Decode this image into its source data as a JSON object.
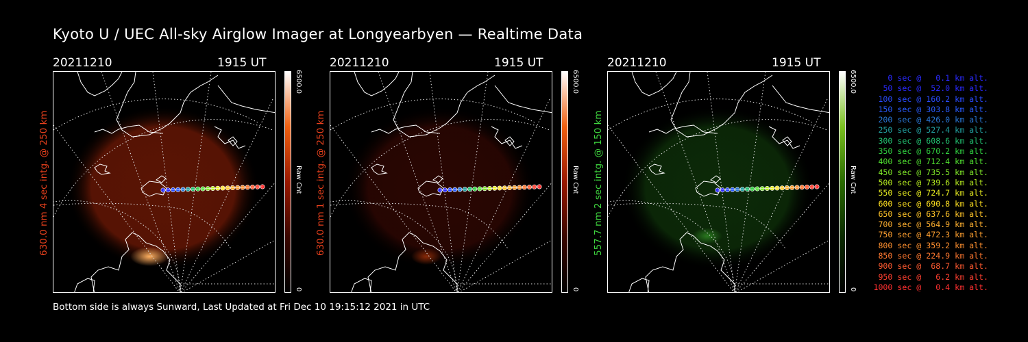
{
  "title": "Kyoto U / UEC All-sky Airglow Imager at Longyearbyen — Realtime Data",
  "panels": [
    {
      "date": "20211210",
      "time": "1915 UT",
      "ylabel": "630.0 nm 4 sec intg. @ 250 km",
      "label_color": "#e8401c",
      "cb_max": "6500.0",
      "cb_min": "0",
      "cb_unit": "Raw Cnt",
      "colormap": "red"
    },
    {
      "date": "20211210",
      "time": "1915 UT",
      "ylabel": "630.0 nm 1 sec intg. @ 250 km",
      "label_color": "#e8401c",
      "cb_max": "6500.0",
      "cb_min": "0",
      "cb_unit": "Raw Cnt",
      "colormap": "red"
    },
    {
      "date": "20211210",
      "time": "1915 UT",
      "ylabel": "557.7 nm 2 sec intg. @ 150 km",
      "label_color": "#3fd63f",
      "cb_max": "6500.0",
      "cb_min": "0",
      "cb_unit": "Raw Cnt",
      "colormap": "green"
    }
  ],
  "legend": [
    {
      "text": "0 sec @   0.1 km alt.",
      "color": "#2a2aff"
    },
    {
      "text": "50 sec @  52.0 km alt.",
      "color": "#2a2aff"
    },
    {
      "text": "100 sec @ 160.2 km alt.",
      "color": "#2a4cff"
    },
    {
      "text": "150 sec @ 303.8 km alt.",
      "color": "#2a5cff"
    },
    {
      "text": "200 sec @ 426.0 km alt.",
      "color": "#2a78d8"
    },
    {
      "text": "250 sec @ 527.4 km alt.",
      "color": "#22a0a0"
    },
    {
      "text": "300 sec @ 608.6 km alt.",
      "color": "#22c070"
    },
    {
      "text": "350 sec @ 670.2 km alt.",
      "color": "#30d040"
    },
    {
      "text": "400 sec @ 712.4 km alt.",
      "color": "#50e030"
    },
    {
      "text": "450 sec @ 735.5 km alt.",
      "color": "#80e828"
    },
    {
      "text": "500 sec @ 739.6 km alt.",
      "color": "#b8ee20"
    },
    {
      "text": "550 sec @ 724.7 km alt.",
      "color": "#e8ee20"
    },
    {
      "text": "600 sec @ 690.8 km alt.",
      "color": "#ffe020"
    },
    {
      "text": "650 sec @ 637.6 km alt.",
      "color": "#ffc428"
    },
    {
      "text": "700 sec @ 564.9 km alt.",
      "color": "#ffb030"
    },
    {
      "text": "750 sec @ 472.3 km alt.",
      "color": "#ffa030"
    },
    {
      "text": "800 sec @ 359.2 km alt.",
      "color": "#ff9030"
    },
    {
      "text": "850 sec @ 224.9 km alt.",
      "color": "#ff7830"
    },
    {
      "text": "900 sec @  68.7 km alt.",
      "color": "#ff5a30"
    },
    {
      "text": "950 sec @   6.2 km alt.",
      "color": "#ff4030"
    },
    {
      "text": "1000 sec @   0.4 km alt.",
      "color": "#ff3030"
    }
  ],
  "footer": "Bottom side is always Sunward, Last Updated at Fri Dec 10 19:15:12 2021 in UTC"
}
